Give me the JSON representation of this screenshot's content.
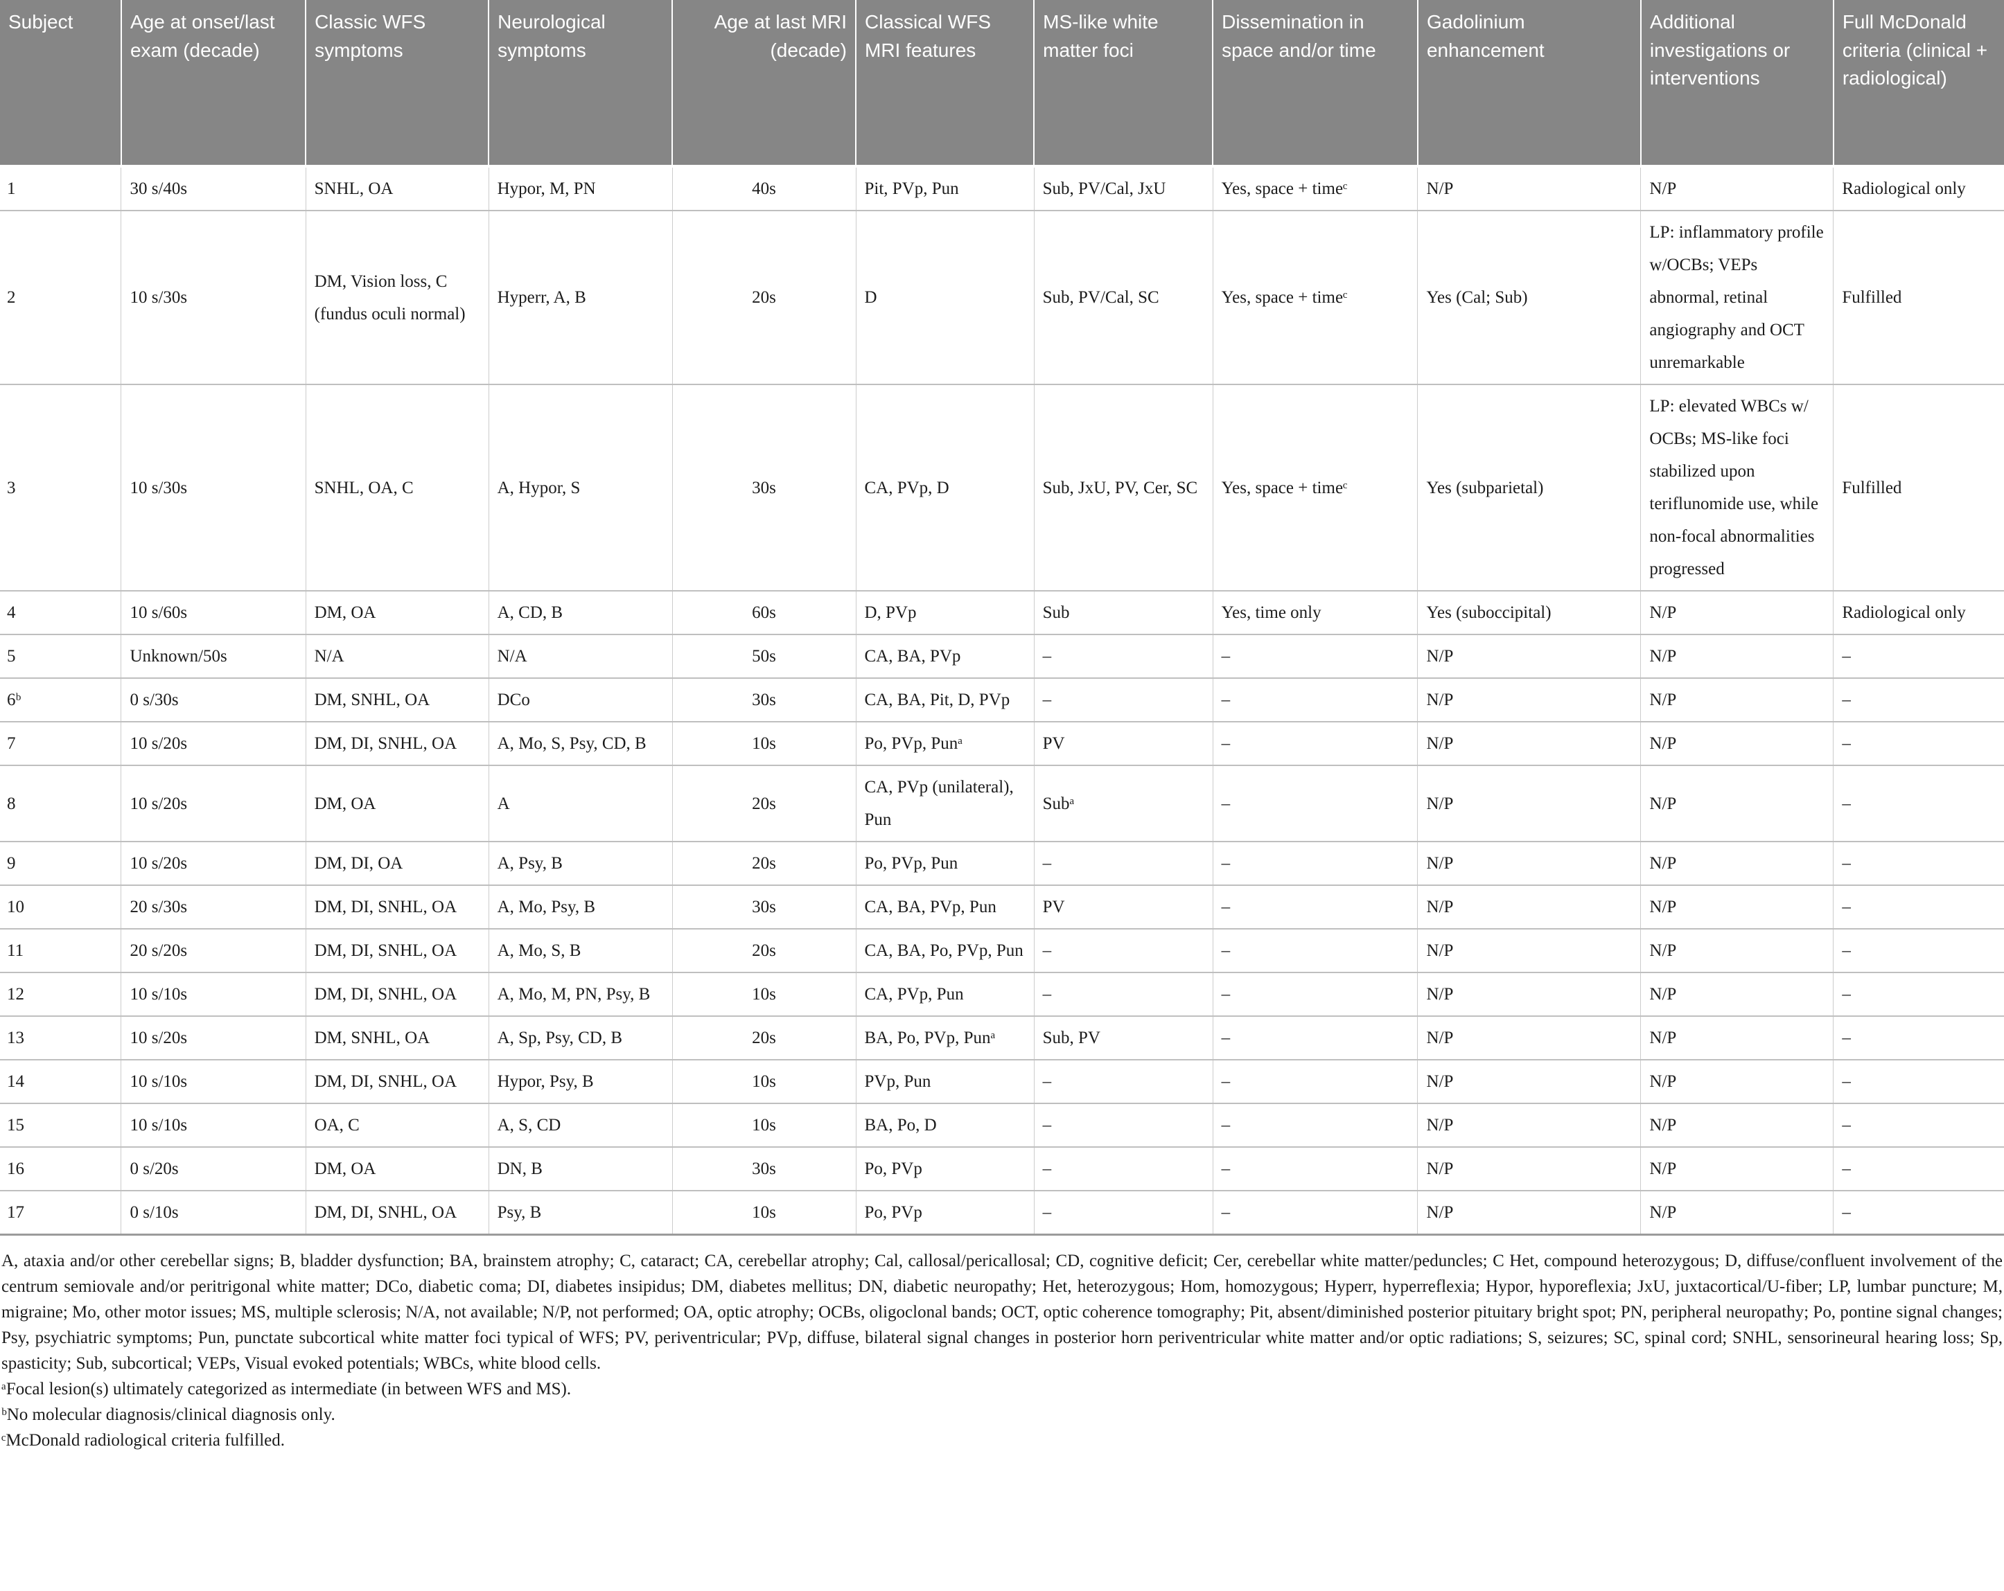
{
  "table": {
    "columns": [
      "Subject",
      "Age at onset/last exam (decade)",
      "Classic WFS symptoms",
      "Neurological symptoms",
      "Age at last MRI (decade)",
      "Classical WFS MRI features",
      "MS-like white matter foci",
      "Dissemination in space and/or time",
      "Gadolinium enhancement",
      "Additional investigations or interventions",
      "Full McDonald criteria (clinical + radiological)"
    ],
    "rows": [
      [
        "1",
        "30 s/40s",
        "SNHL, OA",
        "Hypor, M, PN",
        "40s",
        "Pit, PVp, Pun",
        "Sub, PV/Cal, JxU",
        "Yes, space + timeᶜ",
        "N/P",
        "N/P",
        "Radiological only"
      ],
      [
        "2",
        "10 s/30s",
        "DM, Vision loss, C (fundus oculi normal)",
        "Hyperr, A, B",
        "20s",
        "D",
        "Sub, PV/Cal, SC",
        "Yes, space + timeᶜ",
        "Yes (Cal; Sub)",
        "LP: inflammatory profile w/OCBs; VEPs abnormal, retinal angiography and OCT unremarkable",
        "Fulfilled"
      ],
      [
        "3",
        "10 s/30s",
        "SNHL, OA, C",
        "A, Hypor, S",
        "30s",
        "CA, PVp, D",
        "Sub, JxU, PV, Cer, SC",
        "Yes, space + timeᶜ",
        "Yes (subparietal)",
        "LP: elevated WBCs w/ OCBs; MS-like foci stabilized upon teriflunomide use, while non-focal abnormalities progressed",
        "Fulfilled"
      ],
      [
        "4",
        "10 s/60s",
        "DM, OA",
        "A, CD, B",
        "60s",
        "D, PVp",
        "Sub",
        "Yes, time only",
        "Yes (suboccipital)",
        "N/P",
        "Radiological only"
      ],
      [
        "5",
        "Unknown/50s",
        "N/A",
        "N/A",
        "50s",
        "CA, BA, PVp",
        "–",
        "–",
        "N/P",
        "N/P",
        "–"
      ],
      [
        "6ᵇ",
        "0 s/30s",
        "DM, SNHL, OA",
        "DCo",
        "30s",
        "CA, BA, Pit, D, PVp",
        "–",
        "–",
        "N/P",
        "N/P",
        "–"
      ],
      [
        "7",
        "10 s/20s",
        "DM, DI, SNHL, OA",
        "A, Mo, S, Psy, CD, B",
        "10s",
        "Po, PVp, Punᵃ",
        "PV",
        "–",
        "N/P",
        "N/P",
        "–"
      ],
      [
        "8",
        "10 s/20s",
        "DM, OA",
        "A",
        "20s",
        "CA, PVp (unilateral), Pun",
        "Subᵃ",
        "–",
        "N/P",
        "N/P",
        "–"
      ],
      [
        "9",
        "10 s/20s",
        "DM, DI, OA",
        "A, Psy, B",
        "20s",
        "Po, PVp, Pun",
        "–",
        "–",
        "N/P",
        "N/P",
        "–"
      ],
      [
        "10",
        "20 s/30s",
        "DM, DI, SNHL, OA",
        "A, Mo, Psy, B",
        "30s",
        "CA, BA, PVp, Pun",
        "PV",
        "–",
        "N/P",
        "N/P",
        "–"
      ],
      [
        "11",
        "20 s/20s",
        "DM, DI, SNHL, OA",
        "A, Mo, S, B",
        "20s",
        "CA, BA, Po, PVp, Pun",
        "–",
        "–",
        "N/P",
        "N/P",
        "–"
      ],
      [
        "12",
        "10 s/10s",
        "DM, DI, SNHL, OA",
        "A, Mo, M, PN, Psy, B",
        "10s",
        "CA, PVp, Pun",
        "–",
        "–",
        "N/P",
        "N/P",
        "–"
      ],
      [
        "13",
        "10 s/20s",
        "DM, SNHL, OA",
        "A, Sp, Psy, CD, B",
        "20s",
        "BA, Po, PVp, Punᵃ",
        "Sub, PV",
        "–",
        "N/P",
        "N/P",
        "–"
      ],
      [
        "14",
        "10 s/10s",
        "DM, DI, SNHL, OA",
        "Hypor, Psy, B",
        "10s",
        "PVp, Pun",
        "–",
        "–",
        "N/P",
        "N/P",
        "–"
      ],
      [
        "15",
        "10 s/10s",
        "OA, C",
        "A, S, CD",
        "10s",
        "BA, Po, D",
        "–",
        "–",
        "N/P",
        "N/P",
        "–"
      ],
      [
        "16",
        "0 s/20s",
        "DM, OA",
        "DN, B",
        "30s",
        "Po, PVp",
        "–",
        "–",
        "N/P",
        "N/P",
        "–"
      ],
      [
        "17",
        "0 s/10s",
        "DM, DI, SNHL, OA",
        "Psy, B",
        "10s",
        "Po, PVp",
        "–",
        "–",
        "N/P",
        "N/P",
        "–"
      ]
    ]
  },
  "footnotes": {
    "abbreviations": "A, ataxia and/or other cerebellar signs; B, bladder dysfunction; BA, brainstem atrophy; C, cataract; CA, cerebellar atrophy; Cal, callosal/pericallosal; CD, cognitive deficit; Cer, cerebellar white matter/peduncles; C Het, compound heterozygous; D, diffuse/confluent involvement of the centrum semiovale and/or peritrigonal white matter; DCo, diabetic coma; DI, diabetes insipidus; DM, diabetes mellitus; DN, diabetic neuropathy; Het, heterozygous; Hom, homozygous; Hyperr, hyperreflexia; Hypor, hyporeflexia; JxU, juxtacortical/U-fiber; LP, lumbar puncture; M, migraine; Mo, other motor issues; MS, multiple sclerosis; N/A, not available; N/P, not performed; OA, optic atrophy; OCBs, oligoclonal bands; OCT, optic coherence tomography; Pit, absent/diminished posterior pituitary bright spot; PN, peripheral neuropathy; Po, pontine signal changes; Psy, psychiatric symptoms; Pun, punctate subcortical white matter foci typical of WFS; PV, periventricular; PVp, diffuse, bilateral signal changes in posterior horn periventricular white matter and/or optic radiations; S, seizures; SC, spinal cord; SNHL, sensorineural hearing loss; Sp, spasticity; Sub, subcortical; VEPs, Visual evoked potentials; WBCs, white blood cells.",
    "a": "ᵃFocal lesion(s) ultimately categorized as intermediate (in between WFS and MS).",
    "b": "ᵇNo molecular diagnosis/clinical diagnosis only.",
    "c": "ᶜMcDonald radiological criteria fulfilled."
  },
  "colors": {
    "header_bg": "#868686",
    "header_text": "#ffffff",
    "body_text": "#1c1c1c",
    "row_border": "#bfbfbf",
    "table_bottom_border": "#9b9b9b"
  }
}
